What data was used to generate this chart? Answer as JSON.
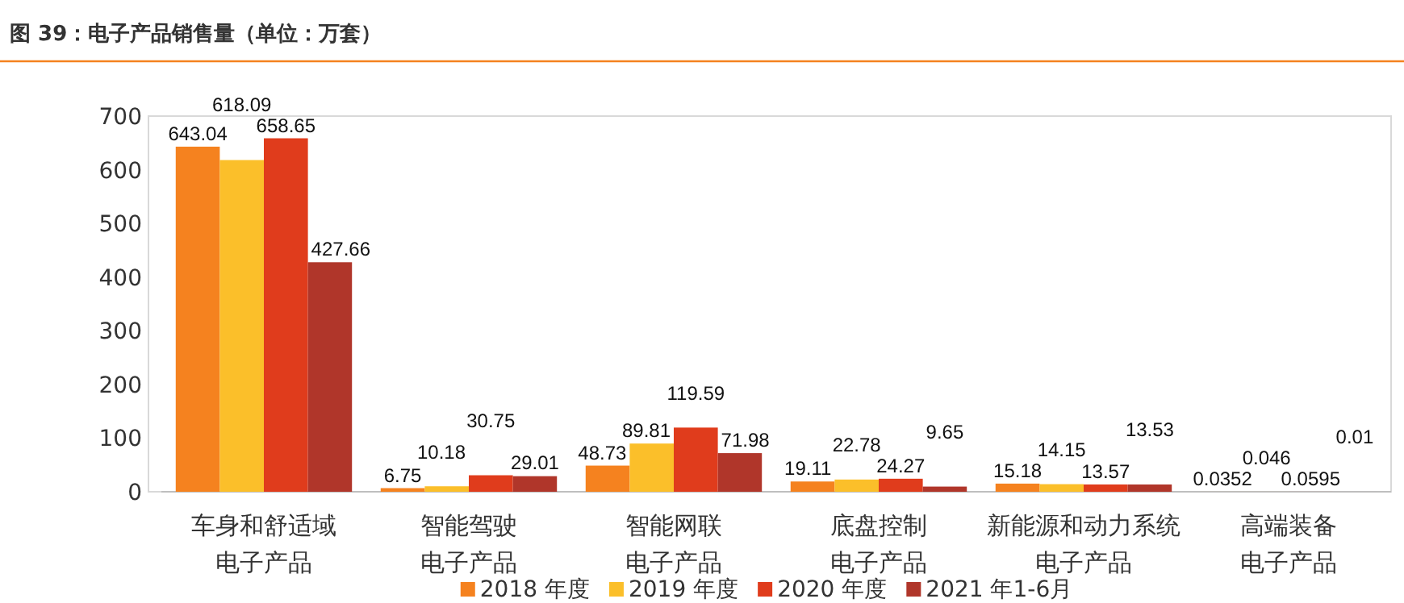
{
  "chart_data": {
    "type": "bar",
    "title": "图 39：电子产品销售量（单位：万套）",
    "categories": [
      "车身和舒适域电子产品",
      "智能驾驶电子产品",
      "智能网联电子产品",
      "底盘控制电子产品",
      "新能源和动力系统电子产品",
      "高端装备电子产品"
    ],
    "series": [
      {
        "name": "2018 年度",
        "color": "#f5821f",
        "values": [
          643.04,
          6.75,
          48.73,
          19.11,
          15.18,
          0.0352
        ]
      },
      {
        "name": "2019 年度",
        "color": "#fbbf2a",
        "values": [
          618.09,
          10.18,
          89.81,
          22.78,
          14.15,
          0.046
        ]
      },
      {
        "name": "2020 年度",
        "color": "#e03c1c",
        "values": [
          658.65,
          30.75,
          119.59,
          24.27,
          13.57,
          0.0595
        ]
      },
      {
        "name": "2021 年1-6月",
        "color": "#b0362a",
        "values": [
          427.66,
          29.01,
          71.98,
          9.65,
          13.53,
          0.01
        ]
      }
    ],
    "ylim": [
      0,
      700
    ],
    "yticks": [
      0,
      100,
      200,
      300,
      400,
      500,
      600,
      700
    ],
    "grid": false,
    "legend": "bottom",
    "data_labels": true
  }
}
